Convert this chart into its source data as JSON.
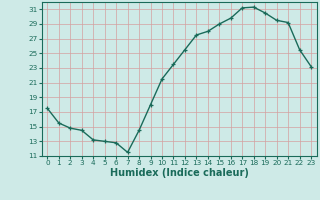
{
  "x": [
    0,
    1,
    2,
    3,
    4,
    5,
    6,
    7,
    8,
    9,
    10,
    11,
    12,
    13,
    14,
    15,
    16,
    17,
    18,
    19,
    20,
    21,
    22,
    23
  ],
  "y": [
    17.5,
    15.5,
    14.8,
    14.5,
    13.2,
    13.0,
    12.8,
    11.5,
    14.5,
    18.0,
    21.5,
    23.5,
    25.5,
    27.5,
    28.0,
    29.0,
    29.8,
    31.2,
    31.3,
    30.5,
    29.5,
    29.2,
    25.5,
    23.2
  ],
  "line_color": "#1a6b5a",
  "marker": "+",
  "marker_size": 3,
  "bg_color": "#ceeae7",
  "grid_color": "#b8d8d5",
  "xlabel": "Humidex (Indice chaleur)",
  "ylim": [
    11,
    32
  ],
  "xlim": [
    -0.5,
    23.5
  ],
  "yticks": [
    11,
    13,
    15,
    17,
    19,
    21,
    23,
    25,
    27,
    29,
    31
  ],
  "xticks": [
    0,
    1,
    2,
    3,
    4,
    5,
    6,
    7,
    8,
    9,
    10,
    11,
    12,
    13,
    14,
    15,
    16,
    17,
    18,
    19,
    20,
    21,
    22,
    23
  ],
  "tick_label_fontsize": 5.2,
  "xlabel_fontsize": 7.0,
  "line_width": 1.0,
  "marker_edge_width": 0.9
}
